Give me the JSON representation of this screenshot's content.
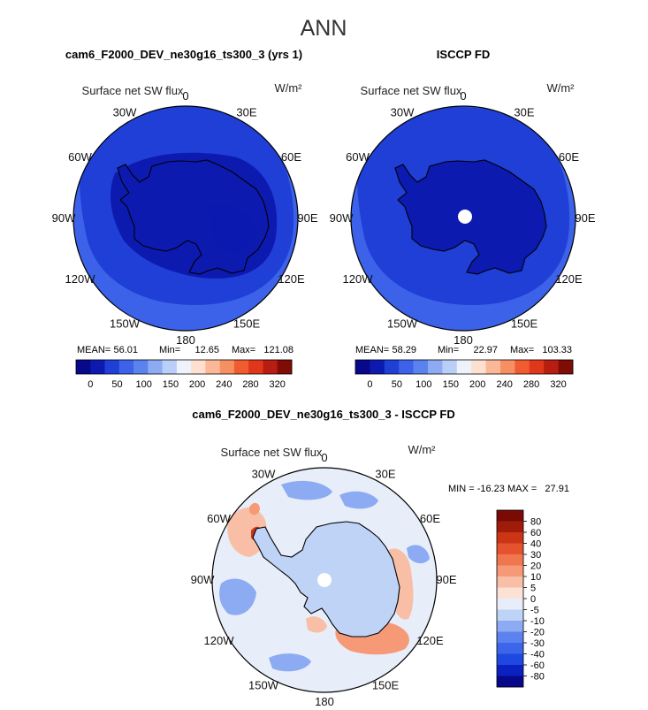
{
  "page": {
    "title": "ANN"
  },
  "colors": {
    "abs": [
      "#08088a",
      "#0c1ab0",
      "#1f3fd6",
      "#3b62e8",
      "#5b82ee",
      "#8cabf2",
      "#b9cff7",
      "#eef2fb",
      "#fde0cf",
      "#fbb896",
      "#f68f62",
      "#f05c30",
      "#e0361a",
      "#b71d10",
      "#7f0c05"
    ],
    "diff": [
      "#08088a",
      "#0c22c0",
      "#1f48e0",
      "#3b66ea",
      "#5b82ee",
      "#8cabf2",
      "#bed3f6",
      "#e8eef9",
      "#fbe2d4",
      "#f8bfa6",
      "#f69977",
      "#f07650",
      "#e5532e",
      "#cb3516",
      "#a01c0a",
      "#7a0a04"
    ],
    "coast": "#000000"
  },
  "chart_data": [
    {
      "type": "heatmap",
      "projection": "south-polar-stereographic",
      "title": "cam6_F2000_DEV_ne30g16_ts300_3 (yrs 1)",
      "variable": "Surface net SW flux",
      "units": "W/m²",
      "lon_labels": [
        "0",
        "30E",
        "60E",
        "90E",
        "120E",
        "150E",
        "180",
        "150W",
        "120W",
        "90W",
        "60W",
        "30W"
      ],
      "stats": {
        "mean_label": "MEAN=",
        "mean": "56.01",
        "min_label": "Min=",
        "min": "12.65",
        "max_label": "Max=",
        "max": "121.08"
      },
      "colorbar": {
        "levels": [
          "0",
          "50",
          "100",
          "150",
          "200",
          "240",
          "280",
          "320"
        ]
      },
      "fields": {
        "land_value": 30,
        "ice_value": 45,
        "ocean_south": 62,
        "ocean_north": 88
      }
    },
    {
      "type": "heatmap",
      "projection": "south-polar-stereographic",
      "title": "ISCCP FD",
      "variable": "Surface net SW flux",
      "units": "W/m²",
      "lon_labels": [
        "0",
        "30E",
        "60E",
        "90E",
        "120E",
        "150E",
        "180",
        "150W",
        "120W",
        "90W",
        "60W",
        "30W"
      ],
      "stats": {
        "mean_label": "MEAN=",
        "mean": "58.29",
        "min_label": "Min=",
        "min": "22.97",
        "max_label": "Max=",
        "max": "103.33"
      },
      "colorbar": {
        "levels": [
          "0",
          "50",
          "100",
          "150",
          "200",
          "240",
          "280",
          "320"
        ]
      },
      "fields": {
        "land_value": 38,
        "ice_value": 55,
        "ocean_south": 65,
        "ocean_north": 80
      }
    },
    {
      "type": "heatmap",
      "projection": "south-polar-stereographic",
      "title": "cam6_F2000_DEV_ne30g16_ts300_3 - ISCCP FD",
      "variable": "Surface net SW flux",
      "units": "W/m²",
      "lon_labels": [
        "0",
        "30E",
        "60E",
        "90E",
        "120E",
        "150E",
        "180",
        "150W",
        "120W",
        "90W",
        "60W",
        "30W"
      ],
      "stats_text": "MIN = -16.23 MAX =   27.91",
      "colorbar": {
        "levels": [
          "80",
          "60",
          "40",
          "30",
          "20",
          "10",
          "5",
          "0",
          "-5",
          "-10",
          "-20",
          "-30",
          "-40",
          "-60",
          "-80"
        ]
      },
      "fields": {
        "land_value": -7,
        "ocean_value": -3
      }
    }
  ]
}
